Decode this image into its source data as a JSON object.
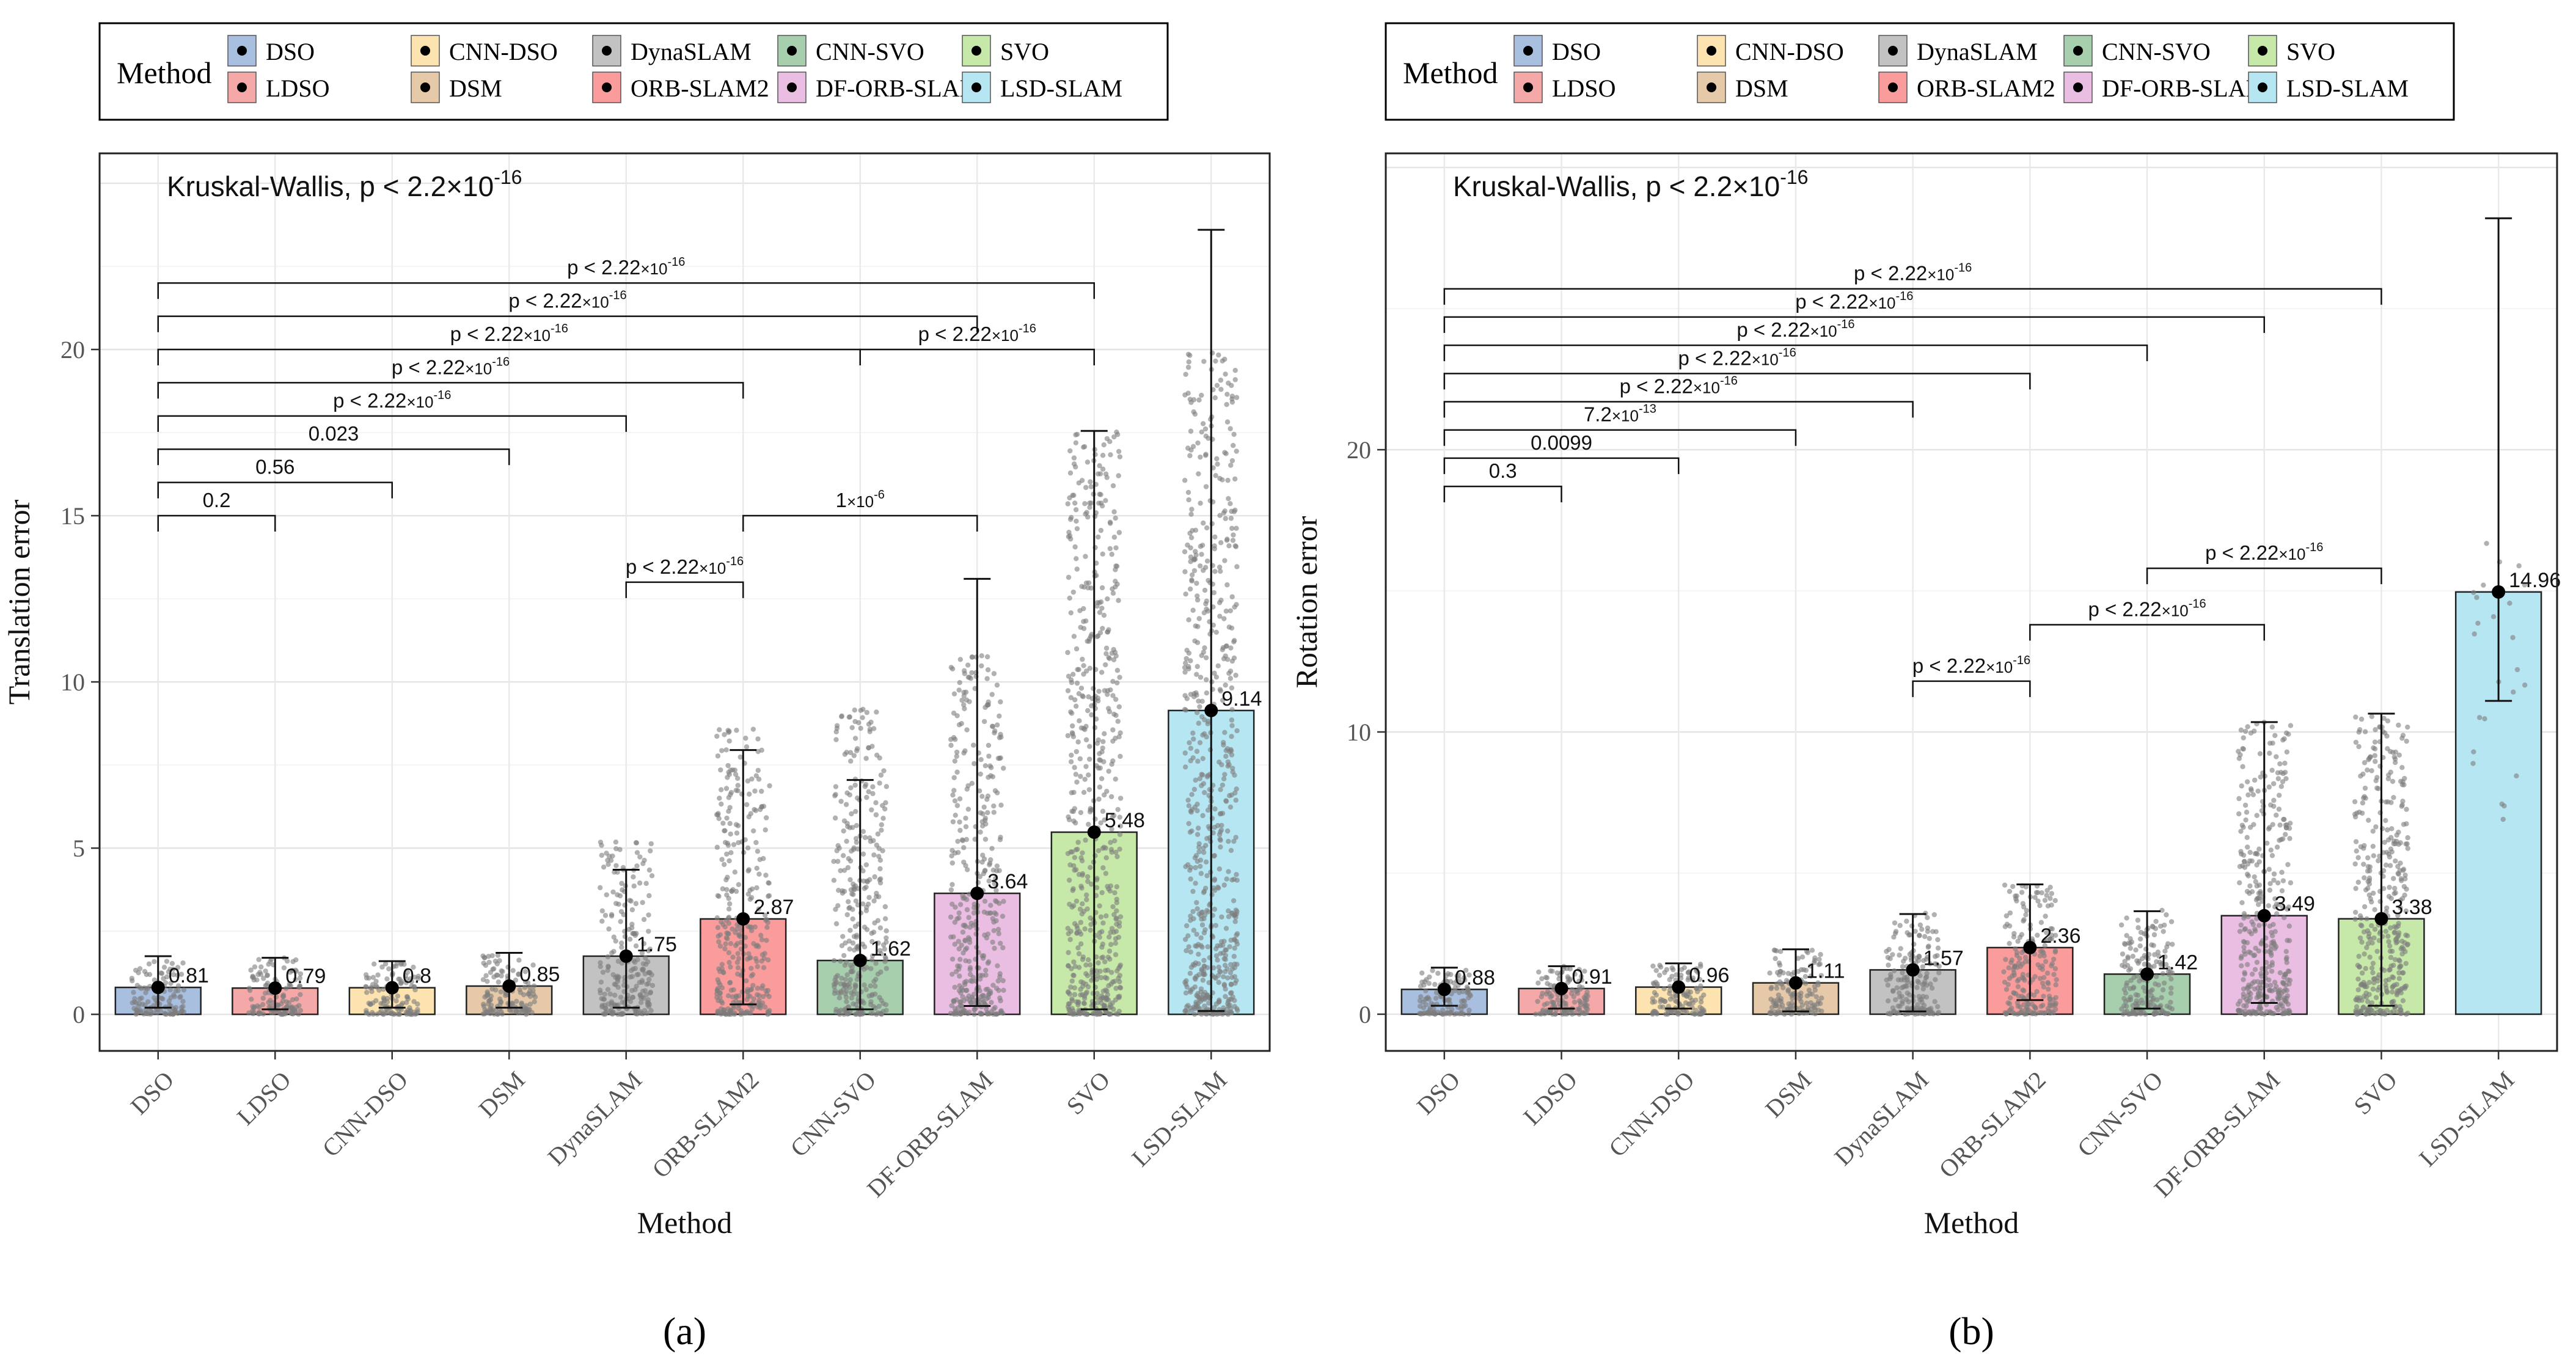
{
  "chart_data": [
    {
      "type": "bar",
      "panel_label": "(a)",
      "legend_title": "Method",
      "kruskal_label": "Kruskal-Wallis, p < 2.2×10",
      "kruskal_exp": "-16",
      "xlabel": "Method",
      "ylabel": "Translation error",
      "ylim": [
        -1.1,
        25.9
      ],
      "yticks": [
        0,
        5,
        10,
        15,
        20
      ],
      "grid": true,
      "categories": [
        "DSO",
        "LDSO",
        "CNN-DSO",
        "DSM",
        "DynaSLAM",
        "ORB-SLAM2",
        "CNN-SVO",
        "DF-ORB-SLAM",
        "SVO",
        "LSD-SLAM"
      ],
      "values": [
        0.81,
        0.79,
        0.8,
        0.85,
        1.75,
        2.87,
        1.62,
        3.64,
        5.48,
        9.14
      ],
      "value_labels": [
        "0.81",
        "0.79",
        "0.8",
        "0.85",
        "1.75",
        "2.87",
        "1.62",
        "3.64",
        "5.48",
        "9.14"
      ],
      "err_low": [
        0.2,
        0.15,
        0.2,
        0.2,
        0.2,
        0.3,
        0.15,
        0.25,
        0.15,
        0.1
      ],
      "err_high": [
        1.75,
        1.7,
        1.6,
        1.85,
        4.35,
        7.95,
        7.05,
        13.1,
        17.55,
        23.6
      ],
      "jitter_max": [
        1.6,
        1.7,
        1.55,
        1.8,
        5.3,
        8.6,
        9.2,
        10.8,
        17.6,
        19.9
      ],
      "brackets": [
        {
          "from": 0,
          "to": 1,
          "y": 15.0,
          "label": "0.2"
        },
        {
          "from": 0,
          "to": 2,
          "y": 16.0,
          "label": "0.56"
        },
        {
          "from": 0,
          "to": 3,
          "y": 17.0,
          "label": "0.023"
        },
        {
          "from": 0,
          "to": 4,
          "y": 18.0,
          "label": "p < 2.22",
          "sup": "×10",
          "exp": "-16"
        },
        {
          "from": 0,
          "to": 5,
          "y": 19.0,
          "label": "p < 2.22",
          "sup": "×10",
          "exp": "-16"
        },
        {
          "from": 0,
          "to": 6,
          "y": 20.0,
          "label": "p < 2.22",
          "sup": "×10",
          "exp": "-16"
        },
        {
          "from": 0,
          "to": 7,
          "y": 21.0,
          "label": "p < 2.22",
          "sup": "×10",
          "exp": "-16"
        },
        {
          "from": 0,
          "to": 8,
          "y": 22.0,
          "label": "p < 2.22",
          "sup": "×10",
          "exp": "-16"
        },
        {
          "from": 4,
          "to": 5,
          "y": 13.0,
          "label": "p < 2.22",
          "sup": "×10",
          "exp": "-16"
        },
        {
          "from": 5,
          "to": 7,
          "y": 15.0,
          "label": "1",
          "sup": "×10",
          "exp": "-6"
        },
        {
          "from": 6,
          "to": 8,
          "y": 20.0,
          "label": "p < 2.22",
          "sup": "×10",
          "exp": "-16"
        }
      ]
    },
    {
      "type": "bar",
      "panel_label": "(b)",
      "legend_title": "Method",
      "kruskal_label": "Kruskal-Wallis, p < 2.2×10",
      "kruskal_exp": "-16",
      "xlabel": "Method",
      "ylabel": "Rotation error",
      "ylim": [
        -1.3,
        30.5
      ],
      "yticks": [
        0,
        10,
        20
      ],
      "grid": true,
      "categories": [
        "DSO",
        "LDSO",
        "CNN-DSO",
        "DSM",
        "DynaSLAM",
        "ORB-SLAM2",
        "CNN-SVO",
        "DF-ORB-SLAM",
        "SVO",
        "LSD-SLAM"
      ],
      "values": [
        0.88,
        0.91,
        0.96,
        1.11,
        1.57,
        2.36,
        1.42,
        3.49,
        3.38,
        14.96
      ],
      "value_labels": [
        "0.88",
        "0.91",
        "0.96",
        "1.11",
        "1.57",
        "2.36",
        "1.42",
        "3.49",
        "3.38",
        "14.96"
      ],
      "err_low": [
        0.3,
        0.2,
        0.2,
        0.1,
        0.1,
        0.5,
        0.2,
        0.4,
        0.3,
        11.1
      ],
      "err_high": [
        1.65,
        1.7,
        1.8,
        2.3,
        3.55,
        4.6,
        3.65,
        10.35,
        10.65,
        28.2
      ],
      "jitter_max": [
        1.6,
        1.7,
        1.8,
        2.3,
        3.6,
        4.6,
        3.7,
        10.4,
        10.6,
        17.2
      ],
      "brackets": [
        {
          "from": 0,
          "to": 1,
          "y": 18.7,
          "label": "0.3"
        },
        {
          "from": 0,
          "to": 2,
          "y": 19.7,
          "label": "0.0099"
        },
        {
          "from": 0,
          "to": 3,
          "y": 20.7,
          "label": "7.2",
          "sup": "×10",
          "exp": "-13"
        },
        {
          "from": 0,
          "to": 4,
          "y": 21.7,
          "label": "p < 2.22",
          "sup": "×10",
          "exp": "-16"
        },
        {
          "from": 0,
          "to": 5,
          "y": 22.7,
          "label": "p < 2.22",
          "sup": "×10",
          "exp": "-16"
        },
        {
          "from": 0,
          "to": 6,
          "y": 23.7,
          "label": "p < 2.22",
          "sup": "×10",
          "exp": "-16"
        },
        {
          "from": 0,
          "to": 7,
          "y": 24.7,
          "label": "p < 2.22",
          "sup": "×10",
          "exp": "-16"
        },
        {
          "from": 0,
          "to": 8,
          "y": 25.7,
          "label": "p < 2.22",
          "sup": "×10",
          "exp": "-16"
        },
        {
          "from": 4,
          "to": 5,
          "y": 11.8,
          "label": "p < 2.22",
          "sup": "×10",
          "exp": "-16"
        },
        {
          "from": 5,
          "to": 7,
          "y": 13.8,
          "label": "p < 2.22",
          "sup": "×10",
          "exp": "-16"
        },
        {
          "from": 6,
          "to": 8,
          "y": 15.8,
          "label": "p < 2.22",
          "sup": "×10",
          "exp": "-16"
        }
      ]
    }
  ],
  "legend": {
    "title": "Method",
    "entries": [
      {
        "name": "DSO",
        "color": "#a8bfe0"
      },
      {
        "name": "LDSO",
        "color": "#f4a8a8"
      },
      {
        "name": "CNN-DSO",
        "color": "#fde3b0"
      },
      {
        "name": "DSM",
        "color": "#e6c9a8"
      },
      {
        "name": "DynaSLAM",
        "color": "#c2c2c2"
      },
      {
        "name": "ORB-SLAM2",
        "color": "#fb9c9c"
      },
      {
        "name": "CNN-SVO",
        "color": "#a7cfae"
      },
      {
        "name": "DF-ORB-SLAM",
        "color": "#eabde3"
      },
      {
        "name": "SVO",
        "color": "#c6e8a8"
      },
      {
        "name": "LSD-SLAM",
        "color": "#b6e6f2"
      }
    ]
  }
}
